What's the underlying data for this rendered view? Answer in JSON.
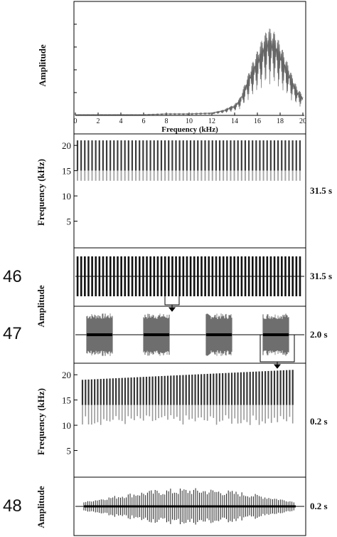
{
  "figure_labels": [
    "46",
    "47",
    "48"
  ],
  "chart_data": [
    {
      "type": "line",
      "ylabel": "Amplitude",
      "xlabel": "Frequency (kHz)",
      "xlim": [
        0,
        20
      ],
      "xticks": [
        "0",
        "2",
        "4",
        "6",
        "8",
        "10",
        "12",
        "14",
        "16",
        "18",
        "20"
      ],
      "series": [
        {
          "x": [
            0,
            2,
            4,
            6,
            8,
            10,
            12,
            13,
            14,
            14.5,
            15,
            15.5,
            16,
            16.5,
            17,
            17.5,
            18,
            18.5,
            19,
            19.5,
            20
          ],
          "values": [
            0.01,
            0.01,
            0.01,
            0.01,
            0.02,
            0.02,
            0.03,
            0.06,
            0.12,
            0.2,
            0.38,
            0.55,
            0.7,
            0.85,
            0.95,
            0.9,
            0.78,
            0.62,
            0.45,
            0.3,
            0.22
          ]
        }
      ]
    },
    {
      "type": "heatmap",
      "ylabel": "Frequency (kHz)",
      "yticks": [
        "20",
        "15",
        "10",
        "5"
      ],
      "ylim": [
        0,
        22
      ],
      "duration_label": "31.5 s",
      "pulse_count": 62,
      "band_khz": [
        13,
        21
      ]
    },
    {
      "type": "line",
      "ylabel": "Amplitude",
      "duration_label": "31.5 s",
      "pulse_count": 62
    },
    {
      "type": "line",
      "duration_label": "2.0 s",
      "pulse_count": 4
    },
    {
      "type": "heatmap",
      "ylabel": "Frequency (kHz)",
      "yticks": [
        "20",
        "15",
        "10",
        "5"
      ],
      "ylim": [
        0,
        22
      ],
      "duration_label": "0.2 s",
      "band_khz": [
        10,
        21
      ]
    },
    {
      "type": "line",
      "ylabel": "Amplitude",
      "duration_label": "0.2 s"
    }
  ]
}
